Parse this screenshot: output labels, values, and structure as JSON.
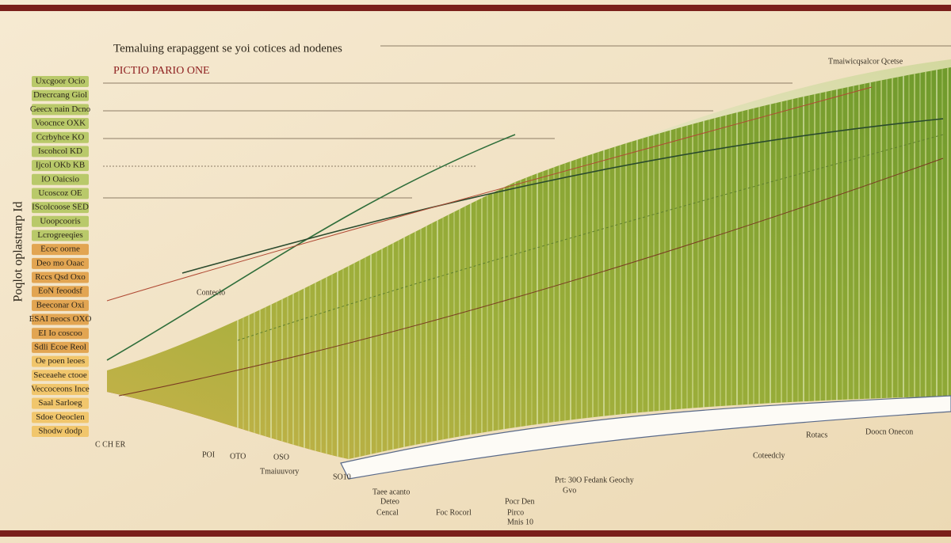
{
  "header": {
    "title": "Temaluing erapaggent se yoi cotices ad nodenes",
    "subtitle": "PICTIO PARIO ONE"
  },
  "y_axis_label": "Poqlot oplastrarp Id",
  "left_labels": [
    "Uxcgoor Ocio",
    "Drecrcang Giol",
    "Geecx nain Dcno",
    "Voocnce OXK",
    "Ccrbyhce KO",
    "Iscohcol KD",
    "Ijcol OKb KB",
    "IO Oaicsio",
    "Ucoscoz OE",
    "IScolcoose SED",
    "Uoopcooris",
    "Lcrogreeqies",
    "Ecoc oorne",
    "Deo mo Oaac",
    "Rccs Qsd Oxo",
    "EoN feoodsf",
    "Beeconar Oxi",
    "ESAI neocs OXO",
    "EI Io coscoo",
    "Sdli Ecoe Reol",
    "Oe poen leoes",
    "Seceaehe ctooe",
    "Veccoceons Ince",
    "Saal Sarloeg",
    "Sdoe Oeoclen",
    "Shodw dodp"
  ],
  "annotations": [
    "Tmaiwicqsalcor Qcetse",
    "Conteclo",
    "Tmaiuuvory",
    "Prt: 30O Fedank Geochy",
    "Gvo",
    "Rotacs",
    "Doocn Onecon",
    "Coteedcly",
    "Taee acanto",
    "Deteo",
    "Pocr Den",
    "Pirco",
    "Mnis 10",
    "Cencal",
    "Foc Rocorl",
    "C CH ER",
    "POI",
    "OTO",
    "OSO",
    "SO10"
  ]
}
